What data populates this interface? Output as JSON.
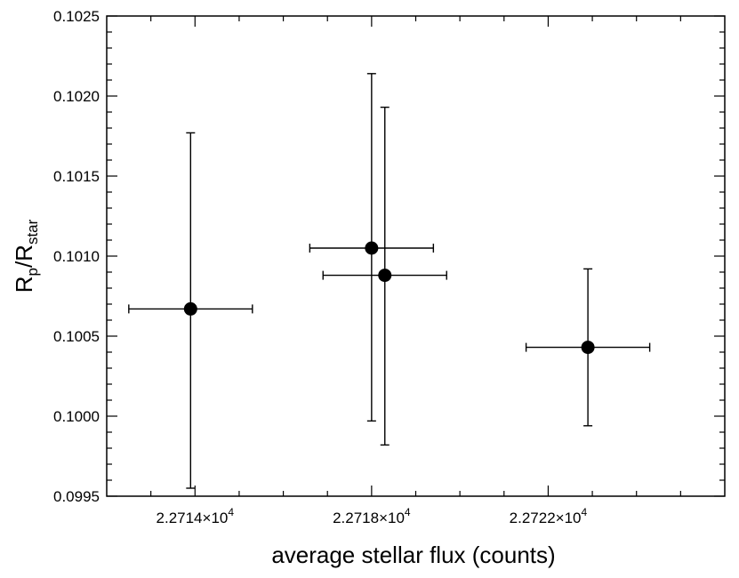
{
  "chart_data": {
    "type": "scatter",
    "title": "",
    "xlabel": "average stellar flux (counts)",
    "ylabel": {
      "base": "R",
      "sub1": "p",
      "sep": "/R",
      "sub2": "star"
    },
    "xlim": [
      22712.0,
      22726.0
    ],
    "ylim": [
      0.0995,
      0.1025
    ],
    "x_ticks": [
      {
        "value": 22714,
        "mantissa": "2.2714×10",
        "exponent": "4"
      },
      {
        "value": 22718,
        "mantissa": "2.2718×10",
        "exponent": "4"
      },
      {
        "value": 22722,
        "mantissa": "2.2722×10",
        "exponent": "4"
      }
    ],
    "x_minor_step": 1,
    "y_ticks": [
      "0.0995",
      "0.1000",
      "0.1005",
      "0.1010",
      "0.1015",
      "0.1020",
      "0.1025"
    ],
    "y_minor_step": 0.0001,
    "grid": false,
    "series": [
      {
        "points": [
          {
            "x": 22713.9,
            "y": 0.10067,
            "xerr": 1.4,
            "yerr_low": 0.00112,
            "yerr_high": 0.0011
          },
          {
            "x": 22718.0,
            "y": 0.10105,
            "xerr": 1.4,
            "yerr_low": 0.00108,
            "yerr_high": 0.00109
          },
          {
            "x": 22718.3,
            "y": 0.10088,
            "xerr": 1.4,
            "yerr_low": 0.00106,
            "yerr_high": 0.00105
          },
          {
            "x": 22722.9,
            "y": 0.10043,
            "xerr": 1.4,
            "yerr_low": 0.00049,
            "yerr_high": 0.00049
          }
        ]
      }
    ]
  }
}
